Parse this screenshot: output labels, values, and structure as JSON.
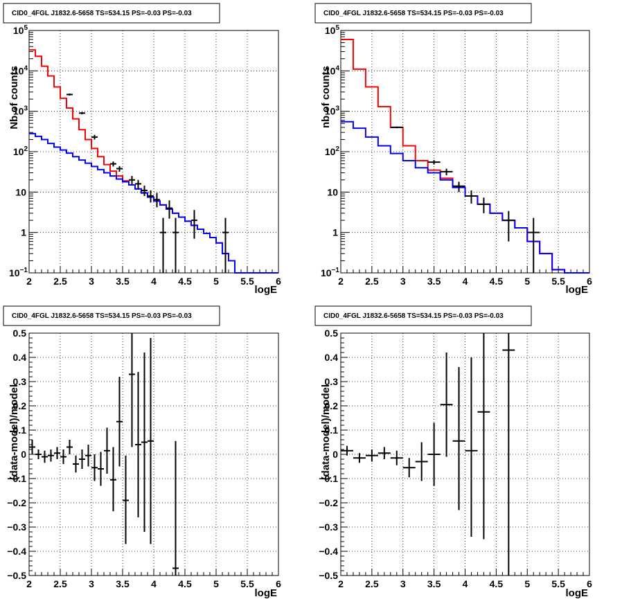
{
  "chart_data": [
    {
      "id": "counts-left",
      "type": "line",
      "title": "CID0_4FGL J1832.6-5658 TS=534.15 PS=-0.03 PS=-0.03",
      "xlabel": "logE",
      "ylabel": "Nb of counts",
      "xlim": [
        2,
        6
      ],
      "ylim": [
        0.1,
        100000
      ],
      "log_y": true,
      "grid": true,
      "xticks": [
        "2",
        "2.5",
        "3",
        "3.5",
        "4",
        "4.5",
        "5",
        "5.5",
        "6"
      ],
      "yticks": [
        {
          "v": 0.1,
          "t": "10",
          "sup": "−1"
        },
        {
          "v": 1,
          "t": "1",
          "sup": ""
        },
        {
          "v": 10,
          "t": "10",
          "sup": ""
        },
        {
          "v": 100,
          "t": "10",
          "sup": "2"
        },
        {
          "v": 1000,
          "t": "10",
          "sup": "3"
        },
        {
          "v": 10000,
          "t": "10",
          "sup": "4"
        },
        {
          "v": 100000,
          "t": "10",
          "sup": "5"
        }
      ],
      "series": [
        {
          "color": "#ff0000",
          "kind": "step",
          "edges": [
            2,
            2.1,
            2.2,
            2.3,
            2.4,
            2.5,
            2.6,
            2.7,
            2.8,
            2.9,
            3.0,
            3.1,
            3.2,
            3.3,
            3.4,
            3.5,
            3.6,
            3.7,
            3.8,
            3.9,
            4.0,
            4.1,
            4.2,
            4.3,
            4.4,
            4.5,
            4.6,
            4.7,
            4.8,
            4.9,
            5.0,
            5.1,
            5.2,
            5.3,
            5.4,
            5.5,
            5.6,
            5.7,
            5.8,
            5.9,
            6.0
          ],
          "values": [
            33000,
            23000,
            13000,
            7500,
            4000,
            2100,
            1200,
            650,
            350,
            200,
            120,
            75,
            48,
            33,
            25,
            19,
            15,
            12,
            9.5,
            7.5,
            6.0,
            4.8,
            3.8,
            3.0,
            2.4,
            1.9,
            1.5,
            1.2,
            0.95,
            0.75,
            0.55,
            0.3,
            0.2,
            0.1,
            0.1,
            0.1,
            0.1,
            0.1,
            0.1,
            0.1
          ]
        },
        {
          "color": "#0000ff",
          "kind": "step",
          "edges": [
            2,
            2.1,
            2.2,
            2.3,
            2.4,
            2.5,
            2.6,
            2.7,
            2.8,
            2.9,
            3.0,
            3.1,
            3.2,
            3.3,
            3.4,
            3.5,
            3.6,
            3.7,
            3.8,
            3.9,
            4.0,
            4.1,
            4.2,
            4.3,
            4.4,
            4.5,
            4.6,
            4.7,
            4.8,
            4.9,
            5.0,
            5.1,
            5.2,
            5.3,
            5.4,
            5.5,
            5.6,
            5.7,
            5.8,
            5.9,
            6.0
          ],
          "values": [
            280,
            240,
            200,
            160,
            130,
            110,
            92,
            75,
            62,
            52,
            43,
            36,
            30,
            25,
            21,
            18,
            15,
            12,
            9.5,
            7.5,
            6.0,
            4.8,
            3.8,
            3.0,
            2.4,
            1.9,
            1.5,
            1.2,
            0.95,
            0.75,
            0.55,
            0.3,
            0.2,
            0.1,
            0.1,
            0.1,
            0.1,
            0.1,
            0.1,
            0.1
          ]
        }
      ],
      "points": [
        {
          "x": 2.65,
          "y": 2600,
          "xerr": 0.05,
          "ylo": 2450,
          "yhi": 2750
        },
        {
          "x": 2.85,
          "y": 900,
          "xerr": 0.05,
          "ylo": 840,
          "yhi": 960
        },
        {
          "x": 3.05,
          "y": 230,
          "xerr": 0.05,
          "ylo": 200,
          "yhi": 260
        },
        {
          "x": 3.35,
          "y": 50,
          "xerr": 0.05,
          "ylo": 43,
          "yhi": 57
        },
        {
          "x": 3.45,
          "y": 38,
          "xerr": 0.05,
          "ylo": 32,
          "yhi": 44
        },
        {
          "x": 3.65,
          "y": 20,
          "xerr": 0.05,
          "ylo": 15.5,
          "yhi": 25
        },
        {
          "x": 3.75,
          "y": 16,
          "xerr": 0.05,
          "ylo": 12,
          "yhi": 20
        },
        {
          "x": 3.85,
          "y": 11,
          "xerr": 0.05,
          "ylo": 8,
          "yhi": 14.5
        },
        {
          "x": 3.95,
          "y": 8,
          "xerr": 0.05,
          "ylo": 5.5,
          "yhi": 11
        },
        {
          "x": 4.05,
          "y": 6.5,
          "xerr": 0.05,
          "ylo": 4.2,
          "yhi": 9.5
        },
        {
          "x": 4.15,
          "y": 1,
          "xerr": 0.05,
          "ylo": 0.1,
          "yhi": 2.3
        },
        {
          "x": 4.25,
          "y": 4,
          "xerr": 0.05,
          "ylo": 2.2,
          "yhi": 6.2
        },
        {
          "x": 4.35,
          "y": 1,
          "xerr": 0.05,
          "ylo": 0.1,
          "yhi": 2.3
        },
        {
          "x": 4.65,
          "y": 2,
          "xerr": 0.05,
          "ylo": 0.7,
          "yhi": 3.6
        },
        {
          "x": 5.15,
          "y": 1,
          "xerr": 0.05,
          "ylo": 0.1,
          "yhi": 2.3
        }
      ]
    },
    {
      "id": "counts-right",
      "type": "line",
      "title": "CID0_4FGL J1832.6-5658 TS=534.15 PS=-0.03 PS=-0.03",
      "xlabel": "logE",
      "ylabel": "nb of counts",
      "xlim": [
        2,
        6
      ],
      "ylim": [
        0.1,
        100000
      ],
      "log_y": true,
      "grid": true,
      "xticks": [
        "2",
        "2.5",
        "3",
        "3.5",
        "4",
        "4.5",
        "5",
        "5.5",
        "6"
      ],
      "yticks": [
        {
          "v": 0.1,
          "t": "10",
          "sup": "−1"
        },
        {
          "v": 1,
          "t": "1",
          "sup": ""
        },
        {
          "v": 10,
          "t": "10",
          "sup": ""
        },
        {
          "v": 100,
          "t": "10",
          "sup": "2"
        },
        {
          "v": 1000,
          "t": "10",
          "sup": "3"
        },
        {
          "v": 10000,
          "t": "10",
          "sup": "4"
        },
        {
          "v": 100000,
          "t": "10",
          "sup": "5"
        }
      ],
      "series": [
        {
          "color": "#ff0000",
          "kind": "step",
          "edges": [
            2,
            2.2,
            2.4,
            2.6,
            2.8,
            3.0,
            3.2,
            3.4,
            3.6,
            3.8,
            4.0,
            4.2,
            4.4,
            4.6,
            4.8,
            5.0,
            5.2,
            5.4,
            5.6,
            5.8,
            6.0
          ],
          "values": [
            60000,
            11000,
            4000,
            1300,
            400,
            140,
            60,
            35,
            22,
            13,
            8,
            5,
            3,
            2,
            1.3,
            0.6,
            0.3,
            0.12,
            0.1,
            0.1
          ]
        },
        {
          "color": "#0000ff",
          "kind": "step",
          "edges": [
            2,
            2.2,
            2.4,
            2.6,
            2.8,
            3.0,
            3.2,
            3.4,
            3.6,
            3.8,
            4.0,
            4.2,
            4.4,
            4.6,
            4.8,
            5.0,
            5.2,
            5.4,
            5.6,
            5.8,
            6.0
          ],
          "values": [
            550,
            380,
            230,
            140,
            90,
            60,
            40,
            30,
            20,
            13,
            8,
            5,
            3,
            2,
            1.3,
            0.6,
            0.3,
            0.12,
            0.1,
            0.1
          ]
        }
      ],
      "points": [
        {
          "x": 2.9,
          "y": 400,
          "xerr": 0.1,
          "ylo": 380,
          "yhi": 420
        },
        {
          "x": 3.5,
          "y": 55,
          "xerr": 0.1,
          "ylo": 48,
          "yhi": 62
        },
        {
          "x": 3.7,
          "y": 32,
          "xerr": 0.1,
          "ylo": 26,
          "yhi": 38
        },
        {
          "x": 3.9,
          "y": 14,
          "xerr": 0.1,
          "ylo": 10,
          "yhi": 18
        },
        {
          "x": 4.1,
          "y": 8,
          "xerr": 0.1,
          "ylo": 5.2,
          "yhi": 11
        },
        {
          "x": 4.3,
          "y": 5,
          "xerr": 0.1,
          "ylo": 3,
          "yhi": 7.3
        },
        {
          "x": 4.7,
          "y": 2,
          "xerr": 0.1,
          "ylo": 0.6,
          "yhi": 3.4
        },
        {
          "x": 5.1,
          "y": 1,
          "xerr": 0.1,
          "ylo": 0.1,
          "yhi": 2.3
        }
      ]
    },
    {
      "id": "residual-left",
      "type": "scatter",
      "title": "CID0_4FGL J1832.6-5658 TS=534.15 PS=-0.03 PS=-0.03",
      "xlabel": "logE",
      "ylabel": "(data-model)/model",
      "xlim": [
        2,
        6
      ],
      "ylim": [
        -0.5,
        0.5
      ],
      "log_y": false,
      "grid": true,
      "xticks": [
        "2",
        "2.5",
        "3",
        "3.5",
        "4",
        "4.5",
        "5",
        "5.5",
        "6"
      ],
      "yticks": [
        {
          "v": -0.5,
          "t": "−0.5",
          "sup": ""
        },
        {
          "v": -0.4,
          "t": "−0.4",
          "sup": ""
        },
        {
          "v": -0.3,
          "t": "−0.3",
          "sup": ""
        },
        {
          "v": -0.2,
          "t": "−0.2",
          "sup": ""
        },
        {
          "v": -0.1,
          "t": "−0.1",
          "sup": ""
        },
        {
          "v": 0,
          "t": "0",
          "sup": ""
        },
        {
          "v": 0.1,
          "t": "0.1",
          "sup": ""
        },
        {
          "v": 0.2,
          "t": "0.2",
          "sup": ""
        },
        {
          "v": 0.3,
          "t": "0.3",
          "sup": ""
        },
        {
          "v": 0.4,
          "t": "0.4",
          "sup": ""
        },
        {
          "v": 0.5,
          "t": "0.5",
          "sup": ""
        }
      ],
      "series": [],
      "points": [
        {
          "x": 2.05,
          "y": 0.03,
          "xerr": 0.05,
          "ylo": 0.0,
          "yhi": 0.06
        },
        {
          "x": 2.15,
          "y": 0.0,
          "xerr": 0.05,
          "ylo": -0.02,
          "yhi": 0.02
        },
        {
          "x": 2.25,
          "y": -0.01,
          "xerr": 0.05,
          "ylo": -0.035,
          "yhi": 0.015
        },
        {
          "x": 2.35,
          "y": -0.005,
          "xerr": 0.05,
          "ylo": -0.03,
          "yhi": 0.02
        },
        {
          "x": 2.45,
          "y": 0.005,
          "xerr": 0.05,
          "ylo": -0.02,
          "yhi": 0.03
        },
        {
          "x": 2.55,
          "y": -0.01,
          "xerr": 0.05,
          "ylo": -0.04,
          "yhi": 0.02
        },
        {
          "x": 2.65,
          "y": 0.03,
          "xerr": 0.05,
          "ylo": 0.0,
          "yhi": 0.06
        },
        {
          "x": 2.75,
          "y": -0.04,
          "xerr": 0.05,
          "ylo": -0.075,
          "yhi": -0.005
        },
        {
          "x": 2.85,
          "y": -0.02,
          "xerr": 0.05,
          "ylo": -0.06,
          "yhi": 0.02
        },
        {
          "x": 2.95,
          "y": -0.005,
          "xerr": 0.05,
          "ylo": -0.05,
          "yhi": 0.04
        },
        {
          "x": 3.05,
          "y": -0.055,
          "xerr": 0.05,
          "ylo": -0.11,
          "yhi": 0.0
        },
        {
          "x": 3.15,
          "y": -0.06,
          "xerr": 0.05,
          "ylo": -0.13,
          "yhi": 0.01
        },
        {
          "x": 3.25,
          "y": 0.015,
          "xerr": 0.05,
          "ylo": -0.08,
          "yhi": 0.11
        },
        {
          "x": 3.35,
          "y": -0.105,
          "xerr": 0.05,
          "ylo": -0.235,
          "yhi": 0.03
        },
        {
          "x": 3.45,
          "y": 0.135,
          "xerr": 0.05,
          "ylo": -0.05,
          "yhi": 0.32
        },
        {
          "x": 3.55,
          "y": -0.19,
          "xerr": 0.05,
          "ylo": -0.37,
          "yhi": -0.005
        },
        {
          "x": 3.65,
          "y": 0.33,
          "xerr": 0.05,
          "ylo": 0.03,
          "yhi": 0.5
        },
        {
          "x": 3.75,
          "y": 0.04,
          "xerr": 0.05,
          "ylo": -0.26,
          "yhi": 0.34
        },
        {
          "x": 3.85,
          "y": 0.05,
          "xerr": 0.05,
          "ylo": -0.32,
          "yhi": 0.42
        },
        {
          "x": 3.95,
          "y": 0.055,
          "xerr": 0.05,
          "ylo": -0.37,
          "yhi": 0.48
        },
        {
          "x": 4.35,
          "y": -0.47,
          "xerr": 0.05,
          "ylo": -0.5,
          "yhi": 0.055
        }
      ]
    },
    {
      "id": "residual-right",
      "type": "scatter",
      "title": "CID0_4FGL J1832.6-5658 TS=534.15 PS=-0.03 PS=-0.03",
      "xlabel": "logE",
      "ylabel": "(data-model)/model",
      "xlim": [
        2,
        6
      ],
      "ylim": [
        -0.5,
        0.5
      ],
      "log_y": false,
      "grid": true,
      "xticks": [
        "2",
        "2.5",
        "3",
        "3.5",
        "4",
        "4.5",
        "5",
        "5.5",
        "6"
      ],
      "yticks": [
        {
          "v": -0.5,
          "t": "−0.5",
          "sup": ""
        },
        {
          "v": -0.4,
          "t": "−0.4",
          "sup": ""
        },
        {
          "v": -0.3,
          "t": "−0.3",
          "sup": ""
        },
        {
          "v": -0.2,
          "t": "−0.2",
          "sup": ""
        },
        {
          "v": -0.1,
          "t": "−0.1",
          "sup": ""
        },
        {
          "v": 0,
          "t": "0",
          "sup": ""
        },
        {
          "v": 0.1,
          "t": "0.1",
          "sup": ""
        },
        {
          "v": 0.2,
          "t": "0.2",
          "sup": ""
        },
        {
          "v": 0.3,
          "t": "0.3",
          "sup": ""
        },
        {
          "v": 0.4,
          "t": "0.4",
          "sup": ""
        },
        {
          "v": 0.5,
          "t": "0.5",
          "sup": ""
        }
      ],
      "series": [],
      "points": [
        {
          "x": 2.1,
          "y": 0.015,
          "xerr": 0.1,
          "ylo": -0.005,
          "yhi": 0.035
        },
        {
          "x": 2.3,
          "y": -0.015,
          "xerr": 0.1,
          "ylo": -0.035,
          "yhi": 0.005
        },
        {
          "x": 2.5,
          "y": -0.005,
          "xerr": 0.1,
          "ylo": -0.03,
          "yhi": 0.02
        },
        {
          "x": 2.7,
          "y": 0.005,
          "xerr": 0.1,
          "ylo": -0.02,
          "yhi": 0.03
        },
        {
          "x": 2.9,
          "y": -0.015,
          "xerr": 0.1,
          "ylo": -0.045,
          "yhi": 0.015
        },
        {
          "x": 3.1,
          "y": -0.055,
          "xerr": 0.1,
          "ylo": -0.095,
          "yhi": -0.015
        },
        {
          "x": 3.3,
          "y": -0.03,
          "xerr": 0.1,
          "ylo": -0.11,
          "yhi": 0.05
        },
        {
          "x": 3.5,
          "y": 0.0,
          "xerr": 0.1,
          "ylo": -0.13,
          "yhi": 0.13
        },
        {
          "x": 3.7,
          "y": 0.205,
          "xerr": 0.1,
          "ylo": -0.01,
          "yhi": 0.42
        },
        {
          "x": 3.9,
          "y": 0.055,
          "xerr": 0.1,
          "ylo": -0.23,
          "yhi": 0.36
        },
        {
          "x": 4.1,
          "y": 0.015,
          "xerr": 0.1,
          "ylo": -0.34,
          "yhi": 0.4
        },
        {
          "x": 4.3,
          "y": 0.175,
          "xerr": 0.1,
          "ylo": -0.35,
          "yhi": 0.5
        },
        {
          "x": 4.7,
          "y": 0.43,
          "xerr": 0.1,
          "ylo": -0.5,
          "yhi": 0.5
        }
      ]
    }
  ]
}
